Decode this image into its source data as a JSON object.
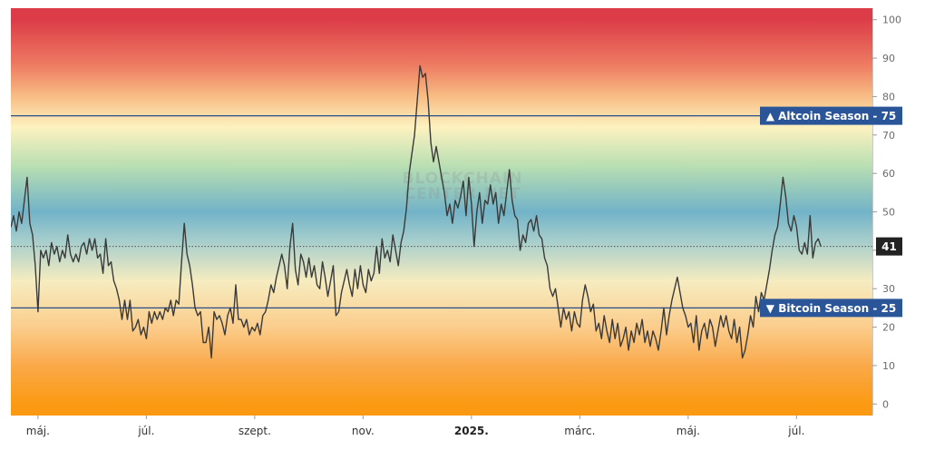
{
  "chart_data": {
    "type": "line",
    "ylim": [
      -3,
      103
    ],
    "y_ticks": [
      0,
      10,
      20,
      30,
      40,
      50,
      60,
      70,
      80,
      90,
      100
    ],
    "x_ticks": [
      {
        "label": "máj.",
        "month": 0,
        "bold": false
      },
      {
        "label": "júl.",
        "month": 2,
        "bold": false
      },
      {
        "label": "szept.",
        "month": 4,
        "bold": false
      },
      {
        "label": "nov.",
        "month": 6,
        "bold": false
      },
      {
        "label": "2025.",
        "month": 8,
        "bold": true
      },
      {
        "label": "márc.",
        "month": 10,
        "bold": false
      },
      {
        "label": "máj.",
        "month": 12,
        "bold": false
      },
      {
        "label": "júl.",
        "month": 14,
        "bold": false
      }
    ],
    "xlim_months": [
      -0.5,
      15.4
    ],
    "reference_lines": [
      {
        "value": 75,
        "label": "▲ Altcoin Season - 75"
      },
      {
        "value": 25,
        "label": "▼ Bitcoin Season - 25"
      }
    ],
    "current_value": 41,
    "watermark": [
      "BLOCKCHAIN",
      "CENTER.NET"
    ],
    "background_gradient": [
      {
        "value": 100,
        "color": "#dc3c48"
      },
      {
        "value": 88,
        "color": "#ee7d62"
      },
      {
        "value": 80,
        "color": "#f8bd84"
      },
      {
        "value": 72,
        "color": "#fdf2c0"
      },
      {
        "value": 62,
        "color": "#b9dfb2"
      },
      {
        "value": 50,
        "color": "#72b3c8"
      },
      {
        "value": 42,
        "color": "#a9cfcc"
      },
      {
        "value": 32,
        "color": "#f6ecc0"
      },
      {
        "value": 20,
        "color": "#fbcd8c"
      },
      {
        "value": 10,
        "color": "#faa94a"
      },
      {
        "value": 0,
        "color": "#fb9a12"
      }
    ],
    "colors": {
      "line": "#3a3a3a",
      "reference": "#284f8c",
      "label_bg": "#2b5599",
      "current_bg": "#222222"
    },
    "series": [
      {
        "points": [
          [
            -0.5,
            46
          ],
          [
            -0.45,
            49
          ],
          [
            -0.4,
            45
          ],
          [
            -0.35,
            50
          ],
          [
            -0.3,
            47
          ],
          [
            -0.25,
            53
          ],
          [
            -0.2,
            59
          ],
          [
            -0.15,
            47
          ],
          [
            -0.1,
            44
          ],
          [
            -0.05,
            36
          ],
          [
            0.0,
            24
          ],
          [
            0.05,
            40
          ],
          [
            0.1,
            38
          ],
          [
            0.15,
            40
          ],
          [
            0.2,
            36
          ],
          [
            0.25,
            42
          ],
          [
            0.3,
            39
          ],
          [
            0.35,
            41
          ],
          [
            0.4,
            37
          ],
          [
            0.45,
            40
          ],
          [
            0.5,
            38
          ],
          [
            0.55,
            44
          ],
          [
            0.6,
            39
          ],
          [
            0.65,
            37
          ],
          [
            0.7,
            39
          ],
          [
            0.75,
            37
          ],
          [
            0.8,
            41
          ],
          [
            0.85,
            42
          ],
          [
            0.9,
            39
          ],
          [
            0.95,
            43
          ],
          [
            1.0,
            40
          ],
          [
            1.05,
            43
          ],
          [
            1.1,
            38
          ],
          [
            1.15,
            39
          ],
          [
            1.2,
            34
          ],
          [
            1.25,
            43
          ],
          [
            1.3,
            36
          ],
          [
            1.35,
            37
          ],
          [
            1.4,
            32
          ],
          [
            1.45,
            30
          ],
          [
            1.5,
            27
          ],
          [
            1.55,
            22
          ],
          [
            1.6,
            27
          ],
          [
            1.65,
            22
          ],
          [
            1.7,
            27
          ],
          [
            1.75,
            19
          ],
          [
            1.8,
            20
          ],
          [
            1.85,
            22
          ],
          [
            1.9,
            18
          ],
          [
            1.95,
            20
          ],
          [
            2.0,
            17
          ],
          [
            2.05,
            24
          ],
          [
            2.1,
            21
          ],
          [
            2.15,
            24
          ],
          [
            2.2,
            22
          ],
          [
            2.25,
            24
          ],
          [
            2.3,
            22
          ],
          [
            2.35,
            25
          ],
          [
            2.4,
            24
          ],
          [
            2.45,
            27
          ],
          [
            2.5,
            23
          ],
          [
            2.55,
            27
          ],
          [
            2.6,
            26
          ],
          [
            2.65,
            37
          ],
          [
            2.7,
            47
          ],
          [
            2.75,
            39
          ],
          [
            2.8,
            36
          ],
          [
            2.85,
            31
          ],
          [
            2.9,
            25
          ],
          [
            2.95,
            23
          ],
          [
            3.0,
            24
          ],
          [
            3.05,
            16
          ],
          [
            3.1,
            16
          ],
          [
            3.15,
            20
          ],
          [
            3.2,
            12
          ],
          [
            3.25,
            24
          ],
          [
            3.3,
            22
          ],
          [
            3.35,
            23
          ],
          [
            3.4,
            21
          ],
          [
            3.45,
            18
          ],
          [
            3.5,
            23
          ],
          [
            3.55,
            25
          ],
          [
            3.6,
            21
          ],
          [
            3.65,
            31
          ],
          [
            3.7,
            22
          ],
          [
            3.75,
            22
          ],
          [
            3.8,
            20
          ],
          [
            3.85,
            22
          ],
          [
            3.9,
            18
          ],
          [
            3.95,
            20
          ],
          [
            4.0,
            19
          ],
          [
            4.05,
            21
          ],
          [
            4.1,
            18
          ],
          [
            4.15,
            23
          ],
          [
            4.2,
            24
          ],
          [
            4.25,
            27
          ],
          [
            4.3,
            31
          ],
          [
            4.35,
            29
          ],
          [
            4.4,
            33
          ],
          [
            4.45,
            36
          ],
          [
            4.5,
            39
          ],
          [
            4.55,
            36
          ],
          [
            4.6,
            30
          ],
          [
            4.65,
            41
          ],
          [
            4.7,
            47
          ],
          [
            4.75,
            35
          ],
          [
            4.8,
            31
          ],
          [
            4.85,
            39
          ],
          [
            4.9,
            37
          ],
          [
            4.95,
            33
          ],
          [
            5.0,
            38
          ],
          [
            5.05,
            33
          ],
          [
            5.1,
            36
          ],
          [
            5.15,
            31
          ],
          [
            5.2,
            30
          ],
          [
            5.25,
            37
          ],
          [
            5.3,
            33
          ],
          [
            5.35,
            28
          ],
          [
            5.4,
            32
          ],
          [
            5.45,
            36
          ],
          [
            5.5,
            23
          ],
          [
            5.55,
            24
          ],
          [
            5.6,
            29
          ],
          [
            5.65,
            32
          ],
          [
            5.7,
            35
          ],
          [
            5.75,
            31
          ],
          [
            5.8,
            28
          ],
          [
            5.85,
            35
          ],
          [
            5.9,
            30
          ],
          [
            5.95,
            36
          ],
          [
            6.0,
            31
          ],
          [
            6.05,
            29
          ],
          [
            6.1,
            35
          ],
          [
            6.15,
            32
          ],
          [
            6.2,
            34
          ],
          [
            6.25,
            41
          ],
          [
            6.3,
            34
          ],
          [
            6.35,
            43
          ],
          [
            6.4,
            38
          ],
          [
            6.45,
            40
          ],
          [
            6.5,
            37
          ],
          [
            6.55,
            44
          ],
          [
            6.6,
            40
          ],
          [
            6.65,
            36
          ],
          [
            6.7,
            42
          ],
          [
            6.75,
            45
          ],
          [
            6.8,
            51
          ],
          [
            6.85,
            60
          ],
          [
            6.9,
            65
          ],
          [
            6.95,
            70
          ],
          [
            7.0,
            79
          ],
          [
            7.05,
            88
          ],
          [
            7.1,
            85
          ],
          [
            7.15,
            86
          ],
          [
            7.2,
            79
          ],
          [
            7.25,
            68
          ],
          [
            7.3,
            63
          ],
          [
            7.35,
            67
          ],
          [
            7.4,
            63
          ],
          [
            7.45,
            59
          ],
          [
            7.5,
            55
          ],
          [
            7.55,
            49
          ],
          [
            7.6,
            52
          ],
          [
            7.65,
            47
          ],
          [
            7.7,
            53
          ],
          [
            7.75,
            51
          ],
          [
            7.8,
            54
          ],
          [
            7.85,
            58
          ],
          [
            7.9,
            49
          ],
          [
            7.95,
            59
          ],
          [
            8.0,
            52
          ],
          [
            8.05,
            41
          ],
          [
            8.1,
            50
          ],
          [
            8.15,
            55
          ],
          [
            8.2,
            47
          ],
          [
            8.25,
            53
          ],
          [
            8.3,
            52
          ],
          [
            8.35,
            57
          ],
          [
            8.4,
            52
          ],
          [
            8.45,
            55
          ],
          [
            8.5,
            47
          ],
          [
            8.55,
            52
          ],
          [
            8.6,
            49
          ],
          [
            8.65,
            55
          ],
          [
            8.7,
            61
          ],
          [
            8.75,
            53
          ],
          [
            8.8,
            49
          ],
          [
            8.85,
            48
          ],
          [
            8.9,
            40
          ],
          [
            8.95,
            44
          ],
          [
            9.0,
            42
          ],
          [
            9.05,
            47
          ],
          [
            9.1,
            48
          ],
          [
            9.15,
            45
          ],
          [
            9.2,
            49
          ],
          [
            9.25,
            44
          ],
          [
            9.3,
            43
          ],
          [
            9.35,
            38
          ],
          [
            9.4,
            36
          ],
          [
            9.45,
            30
          ],
          [
            9.5,
            28
          ],
          [
            9.55,
            30
          ],
          [
            9.6,
            25
          ],
          [
            9.65,
            20
          ],
          [
            9.7,
            25
          ],
          [
            9.75,
            22
          ],
          [
            9.8,
            24
          ],
          [
            9.85,
            19
          ],
          [
            9.9,
            24
          ],
          [
            9.95,
            21
          ],
          [
            10.0,
            20
          ],
          [
            10.05,
            27
          ],
          [
            10.1,
            31
          ],
          [
            10.15,
            28
          ],
          [
            10.2,
            24
          ],
          [
            10.25,
            26
          ],
          [
            10.3,
            19
          ],
          [
            10.35,
            21
          ],
          [
            10.4,
            17
          ],
          [
            10.45,
            23
          ],
          [
            10.5,
            19
          ],
          [
            10.55,
            16
          ],
          [
            10.6,
            22
          ],
          [
            10.65,
            17
          ],
          [
            10.7,
            21
          ],
          [
            10.75,
            15
          ],
          [
            10.8,
            17
          ],
          [
            10.85,
            20
          ],
          [
            10.9,
            14
          ],
          [
            10.95,
            19
          ],
          [
            11.0,
            16
          ],
          [
            11.05,
            21
          ],
          [
            11.1,
            18
          ],
          [
            11.15,
            22
          ],
          [
            11.2,
            16
          ],
          [
            11.25,
            19
          ],
          [
            11.3,
            15
          ],
          [
            11.35,
            19
          ],
          [
            11.4,
            17
          ],
          [
            11.45,
            14
          ],
          [
            11.5,
            19
          ],
          [
            11.55,
            25
          ],
          [
            11.6,
            18
          ],
          [
            11.65,
            23
          ],
          [
            11.7,
            27
          ],
          [
            11.75,
            30
          ],
          [
            11.8,
            33
          ],
          [
            11.85,
            29
          ],
          [
            11.9,
            25
          ],
          [
            11.95,
            23
          ],
          [
            12.0,
            20
          ],
          [
            12.05,
            21
          ],
          [
            12.1,
            16
          ],
          [
            12.15,
            23
          ],
          [
            12.2,
            14
          ],
          [
            12.25,
            19
          ],
          [
            12.3,
            21
          ],
          [
            12.35,
            17
          ],
          [
            12.4,
            22
          ],
          [
            12.45,
            20
          ],
          [
            12.5,
            15
          ],
          [
            12.55,
            19
          ],
          [
            12.6,
            23
          ],
          [
            12.65,
            20
          ],
          [
            12.7,
            23
          ],
          [
            12.75,
            19
          ],
          [
            12.8,
            17
          ],
          [
            12.85,
            22
          ],
          [
            12.9,
            16
          ],
          [
            12.95,
            20
          ],
          [
            13.0,
            12
          ],
          [
            13.05,
            14
          ],
          [
            13.1,
            18
          ],
          [
            13.15,
            23
          ],
          [
            13.2,
            20
          ],
          [
            13.25,
            28
          ],
          [
            13.3,
            24
          ],
          [
            13.35,
            29
          ],
          [
            13.4,
            27
          ],
          [
            13.45,
            31
          ],
          [
            13.5,
            35
          ],
          [
            13.55,
            40
          ],
          [
            13.6,
            44
          ],
          [
            13.65,
            46
          ],
          [
            13.7,
            52
          ],
          [
            13.75,
            59
          ],
          [
            13.8,
            54
          ],
          [
            13.85,
            47
          ],
          [
            13.9,
            45
          ],
          [
            13.95,
            49
          ],
          [
            14.0,
            46
          ],
          [
            14.05,
            40
          ],
          [
            14.1,
            39
          ],
          [
            14.15,
            42
          ],
          [
            14.2,
            39
          ],
          [
            14.25,
            49
          ],
          [
            14.3,
            38
          ],
          [
            14.35,
            42
          ],
          [
            14.4,
            43
          ],
          [
            14.45,
            41
          ]
        ]
      }
    ]
  }
}
